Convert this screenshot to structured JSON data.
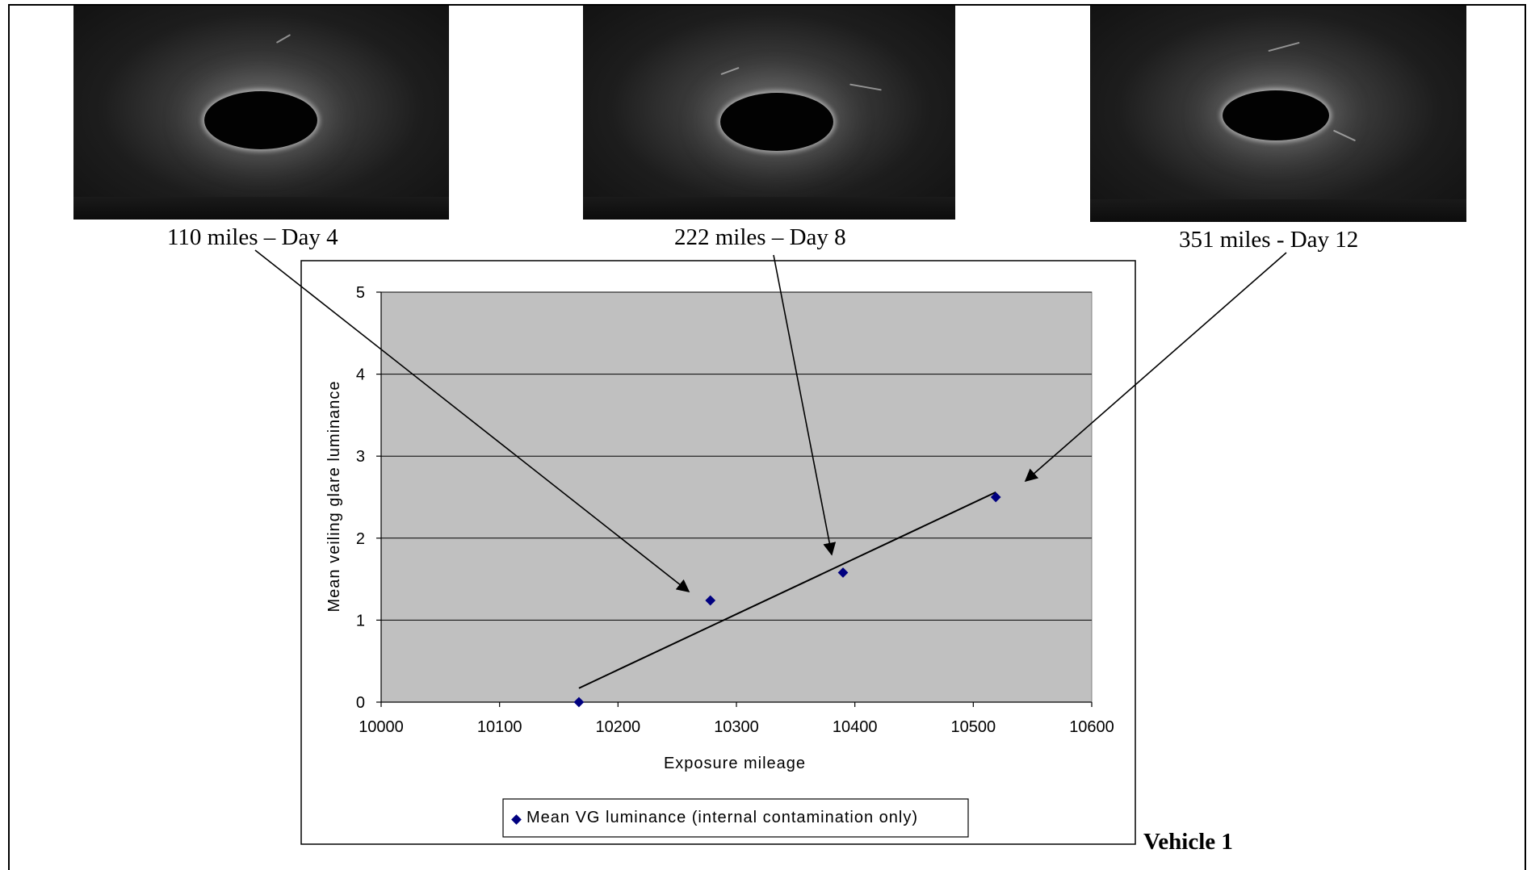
{
  "photos": [
    {
      "caption": "110 miles – Day 4"
    },
    {
      "caption": "222 miles – Day 8"
    },
    {
      "caption": "351 miles - Day 12"
    }
  ],
  "vehicle_label": "Vehicle 1",
  "chart_data": {
    "type": "scatter",
    "title": "",
    "xlabel": "Exposure mileage",
    "ylabel": "Mean veiling glare luminance",
    "xlim": [
      10000,
      10600
    ],
    "ylim": [
      0,
      5
    ],
    "xticks": [
      10000,
      10100,
      10200,
      10300,
      10400,
      10500,
      10600
    ],
    "yticks": [
      0,
      1,
      2,
      3,
      4,
      5
    ],
    "grid": "horizontal",
    "plot_background": "#c0c0c0",
    "marker_color": "#000080",
    "legend": {
      "position": "bottom",
      "entries": [
        "Mean VG luminance (internal contamination only)"
      ]
    },
    "series": [
      {
        "name": "Mean VG luminance (internal contamination only)",
        "x": [
          10167,
          10278,
          10390,
          10519
        ],
        "y": [
          0,
          1.24,
          1.58,
          2.5
        ]
      }
    ],
    "trendline": {
      "from": [
        10167,
        0.17
      ],
      "to": [
        10519,
        2.56
      ]
    }
  },
  "colors": {
    "plot_background": "#c0c0c0",
    "marker": "#000080",
    "frame": "#000000"
  }
}
